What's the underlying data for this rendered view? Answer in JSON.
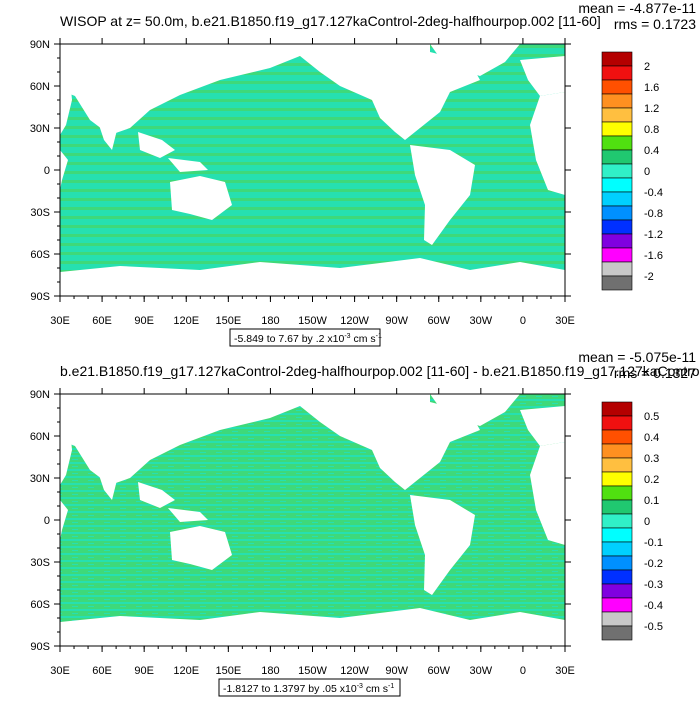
{
  "panels": [
    {
      "title": "WISOP at z=  50.0m, b.e21.B1850.f19_g17.127kaControl-2deg-halfhourpop.002 [11-60]",
      "mean": "mean = -4.877e-11",
      "rms": "rms = 0.1723",
      "range_text": "-5.849 to 7.67 by .2 x10",
      "range_exp": "-3",
      "range_unit": " cm s",
      "range_unit_exp": "-1",
      "legend_labels": [
        "2",
        "1.6",
        "1.2",
        "0.8",
        "0.4",
        "0",
        "-0.4",
        "-0.8",
        "-1.2",
        "-1.6",
        "-2"
      ]
    },
    {
      "title": "b.e21.B1850.f19_g17.127kaControl-2deg-halfhourpop.002 [11-60] - b.e21.B1850.f19_g17.127kaControl-",
      "mean": "mean = -5.075e-11",
      "rms": "rms = 0.1327",
      "range_text": "-1.8127 to 1.3797 by .05 x10",
      "range_exp": "-3",
      "range_unit": " cm s",
      "range_unit_exp": "-1",
      "legend_labels": [
        "0.5",
        "0.4",
        "0.3",
        "0.2",
        "0.1",
        "0",
        "-0.1",
        "-0.2",
        "-0.3",
        "-0.4",
        "-0.5"
      ]
    }
  ],
  "lat_labels": [
    "90N",
    "60N",
    "30N",
    "0",
    "30S",
    "60S",
    "90S"
  ],
  "lon_labels": [
    "30E",
    "60E",
    "90E",
    "120E",
    "150E",
    "180",
    "150W",
    "120W",
    "90W",
    "60W",
    "30W",
    "0",
    "30E"
  ],
  "colors": {
    "ocean_main": "#26e0b0",
    "ocean_alt": "#3ed97a",
    "land": "#ffffff",
    "legend": [
      "#b40000",
      "#f01010",
      "#ff5000",
      "#ff9020",
      "#ffbf40",
      "#ffff00",
      "#50e010",
      "#20c870",
      "#30f0c8",
      "#00ffff",
      "#00d0ff",
      "#0090ff",
      "#0030ff",
      "#8000e0",
      "#ff00ff",
      "#c8c8c8",
      "#707070"
    ]
  }
}
